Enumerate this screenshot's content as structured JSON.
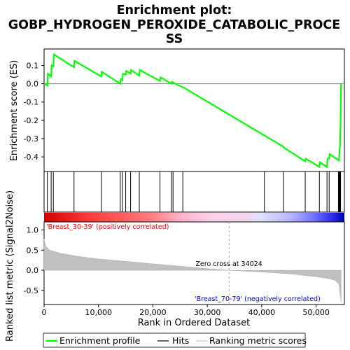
{
  "figure": {
    "title_line1": "Enrichment plot:",
    "title_line2": "GOBP_HYDROGEN_PEROXIDE_CATABOLIC_PROCE",
    "title_line3": "SS"
  },
  "chart_data": [
    {
      "type": "line",
      "panel": "enrichment",
      "ylabel": "Enrichment score (ES)",
      "ylim": [
        -0.48,
        0.19
      ],
      "xlim": [
        0,
        55200
      ],
      "yticks": [
        -0.4,
        -0.3,
        -0.2,
        -0.1,
        0.0,
        0.1
      ],
      "ytick_labels": [
        "-0.4",
        "-0.3",
        "-0.2",
        "-0.1",
        "0.0",
        "0.1"
      ],
      "grid": false,
      "series": [
        {
          "name": "Enrichment profile",
          "color": "#00ff00",
          "x": [
            0,
            600,
            700,
            1300,
            1400,
            1700,
            1800,
            5500,
            5600,
            10500,
            10600,
            14000,
            14100,
            14400,
            14500,
            15000,
            15100,
            15900,
            16000,
            17500,
            17600,
            21300,
            21400,
            23400,
            23500,
            25500,
            25600,
            44000,
            44100,
            48000,
            48100,
            50600,
            50700,
            52000,
            52100,
            52400,
            52500,
            54200,
            54300,
            54400,
            54500,
            54550,
            54600
          ],
          "y": [
            0.0,
            -0.01,
            0.055,
            0.04,
            0.1,
            0.095,
            0.16,
            0.09,
            0.125,
            0.04,
            0.065,
            0.0,
            0.025,
            0.02,
            0.055,
            0.05,
            0.07,
            0.055,
            0.075,
            0.045,
            0.075,
            0.015,
            0.035,
            0.0,
            0.01,
            -0.02,
            -0.02,
            -0.345,
            -0.35,
            -0.425,
            -0.41,
            -0.455,
            -0.43,
            -0.455,
            -0.41,
            -0.41,
            -0.385,
            -0.42,
            -0.37,
            -0.33,
            -0.2,
            -0.08,
            0.0
          ]
        }
      ],
      "hits_x": [
        600,
        1300,
        1700,
        5500,
        10500,
        14000,
        14400,
        15000,
        15900,
        17500,
        21300,
        23400,
        23700,
        25500,
        40500,
        44000,
        48000,
        50600,
        52000,
        52400,
        54100,
        54200,
        54300,
        54400,
        54500
      ]
    },
    {
      "type": "area",
      "panel": "ranked-metric",
      "ylabel": "Ranked list metric (Signal2Noise)",
      "xlabel": "Rank in Ordered Dataset",
      "ylim": [
        -0.85,
        1.2
      ],
      "xlim": [
        0,
        55200
      ],
      "yticks": [
        -0.5,
        0.0,
        0.5,
        1.0
      ],
      "ytick_labels": [
        "-0.5",
        "0.0",
        "0.5",
        "1.0"
      ],
      "xticks": [
        0,
        10000,
        20000,
        30000,
        40000,
        50000
      ],
      "xtick_labels": [
        "0",
        "10,000",
        "20,000",
        "30,000",
        "40,000",
        "50,000"
      ],
      "x": [
        0,
        300,
        1000,
        3000,
        6000,
        10000,
        15000,
        20000,
        25000,
        30000,
        34024,
        38000,
        42000,
        46000,
        50000,
        52000,
        53500,
        54200,
        54600
      ],
      "values": [
        0.78,
        0.6,
        0.5,
        0.42,
        0.35,
        0.28,
        0.22,
        0.16,
        0.1,
        0.04,
        0.0,
        -0.03,
        -0.06,
        -0.1,
        -0.16,
        -0.2,
        -0.25,
        -0.35,
        -0.8
      ],
      "zero_cross": 34024,
      "annotations": {
        "zero_cross_text": "Zero cross at 34024",
        "positive_label": "'Breast_30-39' (positively correlated)",
        "negative_label": "'Breast_70-79' (negatively correlated)"
      },
      "colors": {
        "fill": "#c0c0c0",
        "positive_text": "#ff0000",
        "negative_text": "#0000ff"
      }
    }
  ],
  "legend": {
    "items": [
      {
        "label": "Enrichment profile",
        "color": "#00ff00"
      },
      {
        "label": "Hits",
        "color": "#000000"
      },
      {
        "label": "Ranking metric scores",
        "color": "#c0c0c0"
      }
    ]
  }
}
